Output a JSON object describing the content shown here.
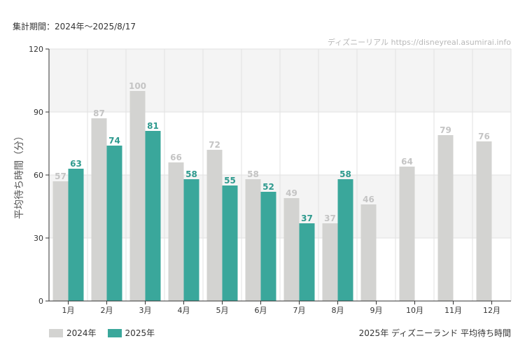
{
  "header": {
    "period_label": "集計期間：2024年～2025/8/17"
  },
  "source": "ディズニーリアル https://disneyreal.asumirai.info",
  "footer": {
    "chart_title": "2025年 ディズニーランド 平均待ち時間"
  },
  "colors": {
    "2024": "#d3d3d1",
    "2025": "#3aa79b",
    "label_2024": "#c4c4c4",
    "label_2025": "#2e9a8e",
    "band": "#f4f4f4",
    "grid": "#e2e2e2",
    "axis": "#333333"
  },
  "chart_data": {
    "type": "bar",
    "categories": [
      "1月",
      "2月",
      "3月",
      "4月",
      "5月",
      "6月",
      "7月",
      "8月",
      "9月",
      "10月",
      "11月",
      "12月"
    ],
    "series": [
      {
        "name": "2024年",
        "values": [
          57,
          87,
          100,
          66,
          72,
          58,
          49,
          37,
          46,
          64,
          79,
          76
        ]
      },
      {
        "name": "2025年",
        "values": [
          63,
          74,
          81,
          58,
          55,
          52,
          37,
          58,
          null,
          null,
          null,
          null
        ]
      }
    ],
    "ylabel": "平均待ち時間（分）",
    "ylim": [
      0,
      120
    ],
    "yticks": [
      0,
      30,
      60,
      90,
      120
    ],
    "grid": true,
    "legend_position": "bottom-left"
  }
}
